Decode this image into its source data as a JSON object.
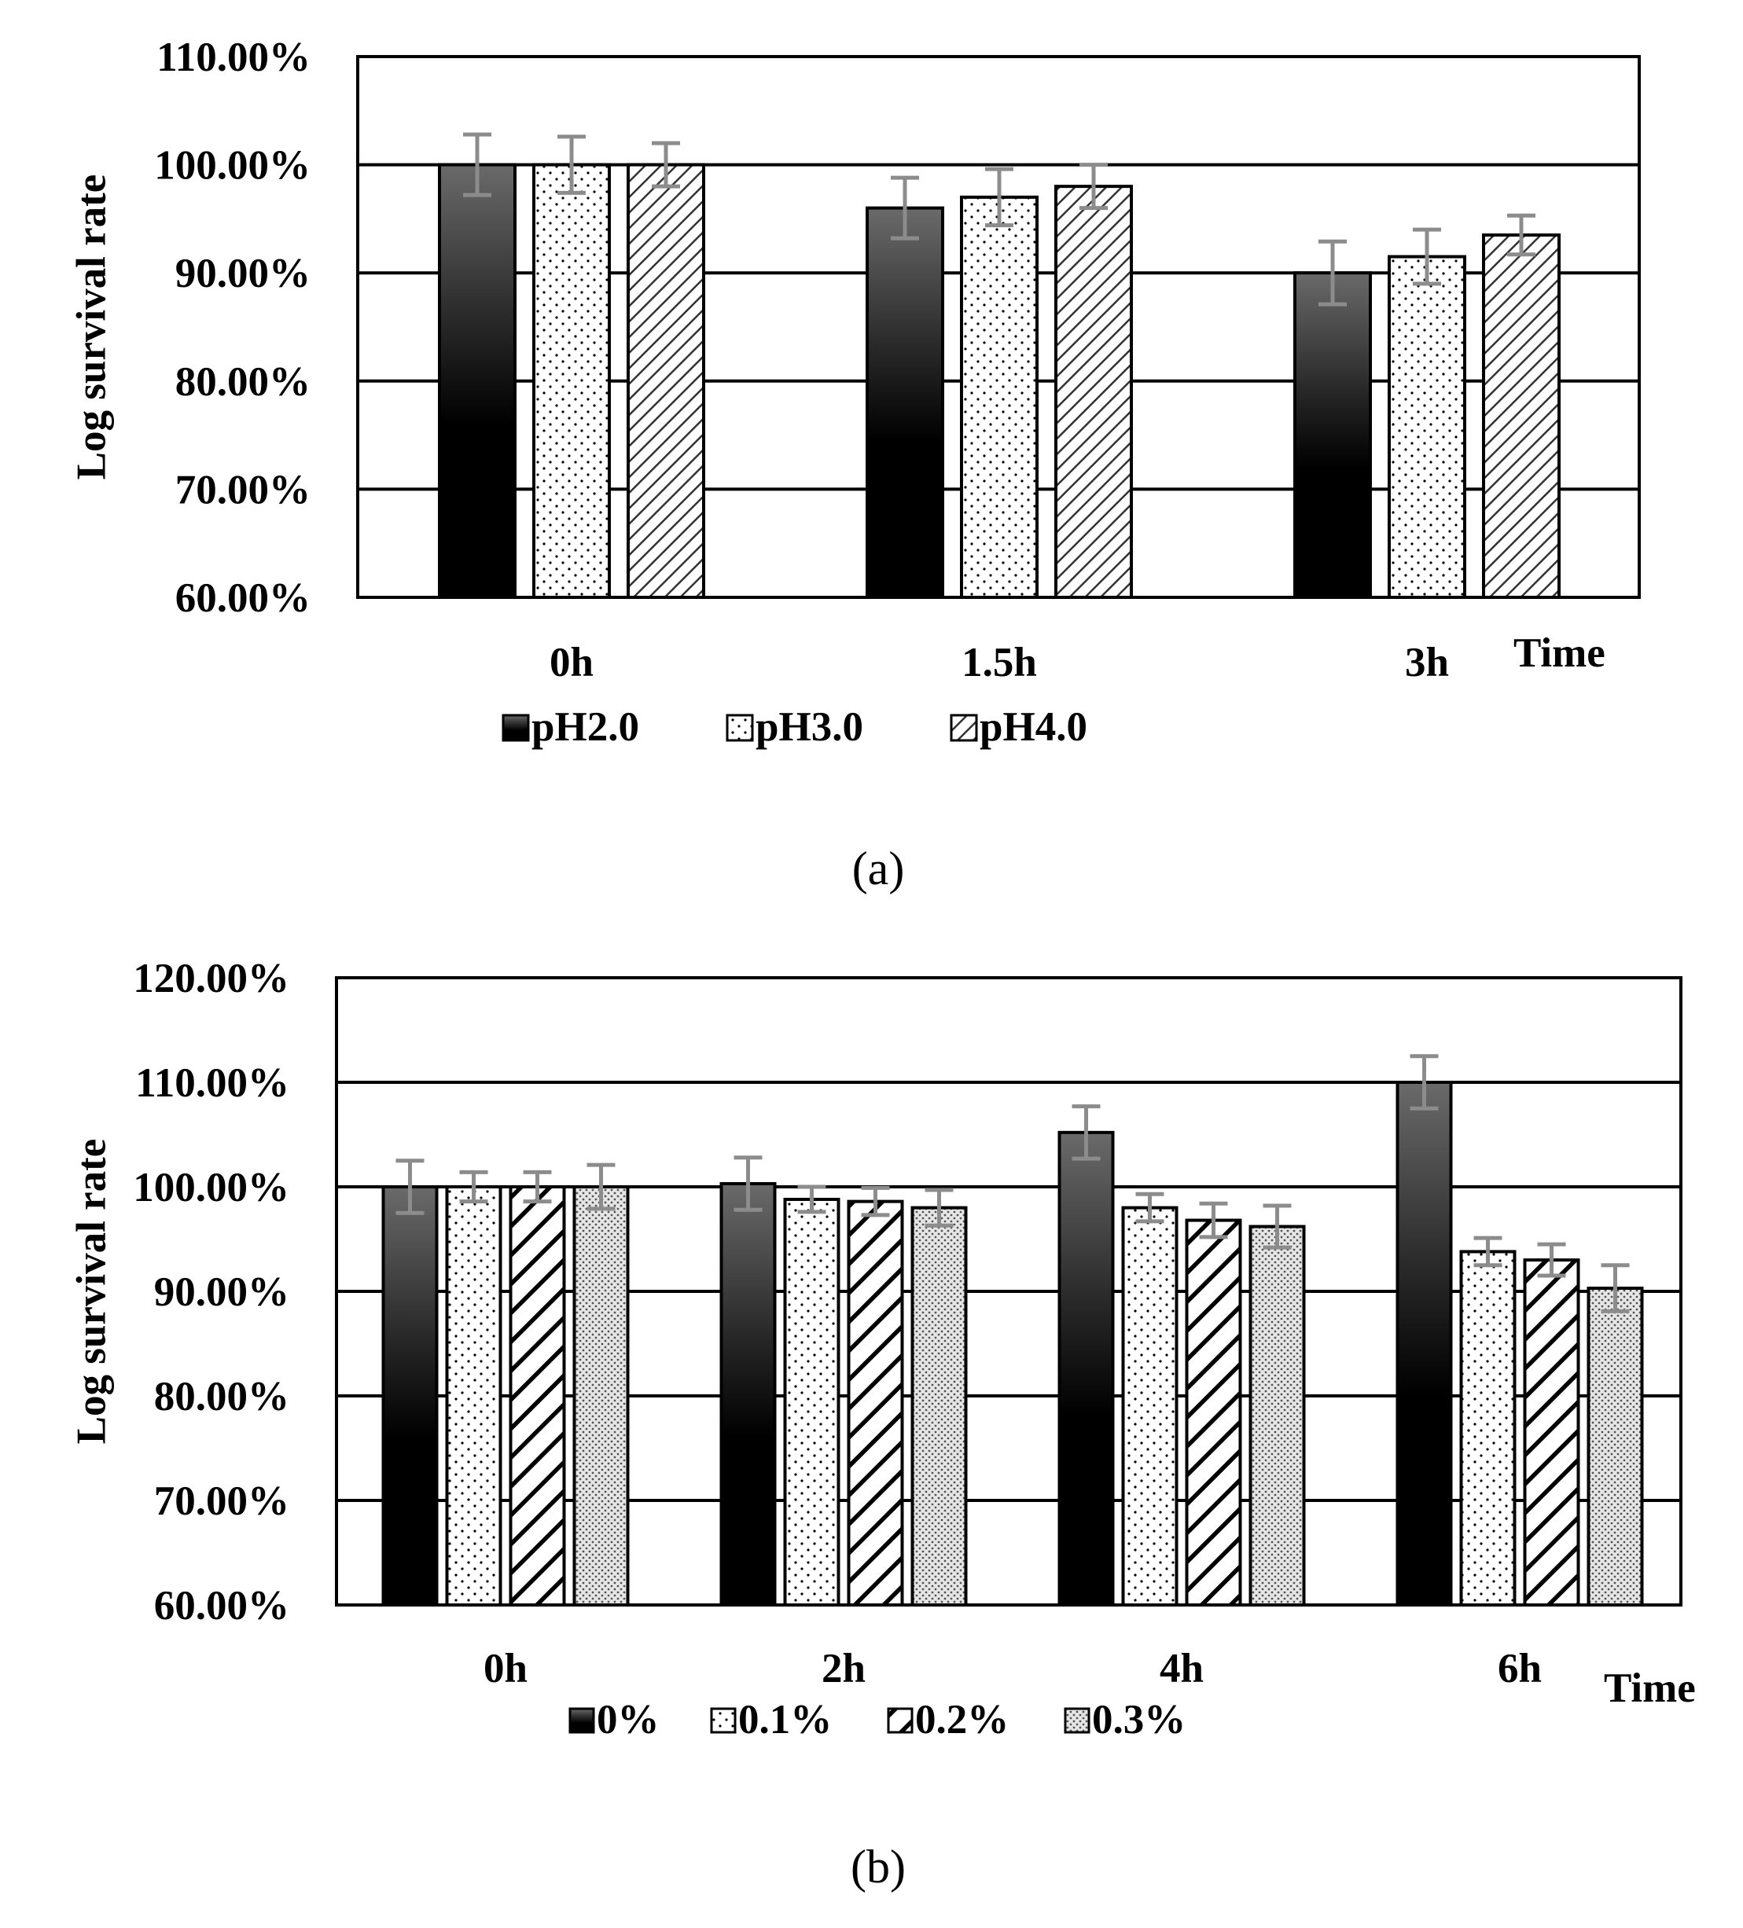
{
  "chart_data": [
    {
      "type": "bar",
      "panel_label": "(a)",
      "categories": [
        "0h",
        "1.5h",
        "3h"
      ],
      "xlabel": "Time",
      "ylabel": "Log survival rate",
      "ylim": [
        0.6,
        1.1
      ],
      "yticks": [
        0.6,
        0.7,
        0.8,
        0.9,
        1.0,
        1.1
      ],
      "ytick_labels": [
        "60.00%",
        "70.00%",
        "80.00%",
        "90.00%",
        "100.00%",
        "110.00%"
      ],
      "grid": true,
      "legend_position": "bottom",
      "series": [
        {
          "name": "pH2.0",
          "pattern": "gradient-dark",
          "values": [
            1.0,
            0.96,
            0.9
          ],
          "errors": [
            0.028,
            0.028,
            0.029
          ]
        },
        {
          "name": "pH3.0",
          "pattern": "dots",
          "values": [
            1.0,
            0.97,
            0.915
          ],
          "errors": [
            0.026,
            0.026,
            0.025
          ]
        },
        {
          "name": "pH4.0",
          "pattern": "hatch-fine",
          "values": [
            1.0,
            0.98,
            0.935
          ],
          "errors": [
            0.02,
            0.02,
            0.018
          ]
        }
      ]
    },
    {
      "type": "bar",
      "panel_label": "(b)",
      "categories": [
        "0h",
        "2h",
        "4h",
        "6h"
      ],
      "xlabel": "Time",
      "ylabel": "Log survival rate",
      "ylim": [
        0.6,
        1.2
      ],
      "yticks": [
        0.6,
        0.7,
        0.8,
        0.9,
        1.0,
        1.1,
        1.2
      ],
      "ytick_labels": [
        "60.00%",
        "70.00%",
        "80.00%",
        "90.00%",
        "100.00%",
        "110.00%",
        "120.00%"
      ],
      "grid": true,
      "legend_position": "bottom",
      "series": [
        {
          "name": "0%",
          "pattern": "gradient-dark",
          "values": [
            1.0,
            1.003,
            1.052,
            1.1
          ],
          "errors": [
            0.025,
            0.025,
            0.025,
            0.025
          ]
        },
        {
          "name": "0.1%",
          "pattern": "dots",
          "values": [
            1.0,
            0.988,
            0.98,
            0.938
          ],
          "errors": [
            0.014,
            0.012,
            0.013,
            0.013
          ]
        },
        {
          "name": "0.2%",
          "pattern": "hatch-bold",
          "values": [
            1.0,
            0.986,
            0.968,
            0.93
          ],
          "errors": [
            0.014,
            0.013,
            0.016,
            0.015
          ]
        },
        {
          "name": "0.3%",
          "pattern": "dense-dots",
          "values": [
            1.0,
            0.98,
            0.962,
            0.903
          ],
          "errors": [
            0.021,
            0.017,
            0.02,
            0.022
          ]
        }
      ]
    }
  ]
}
